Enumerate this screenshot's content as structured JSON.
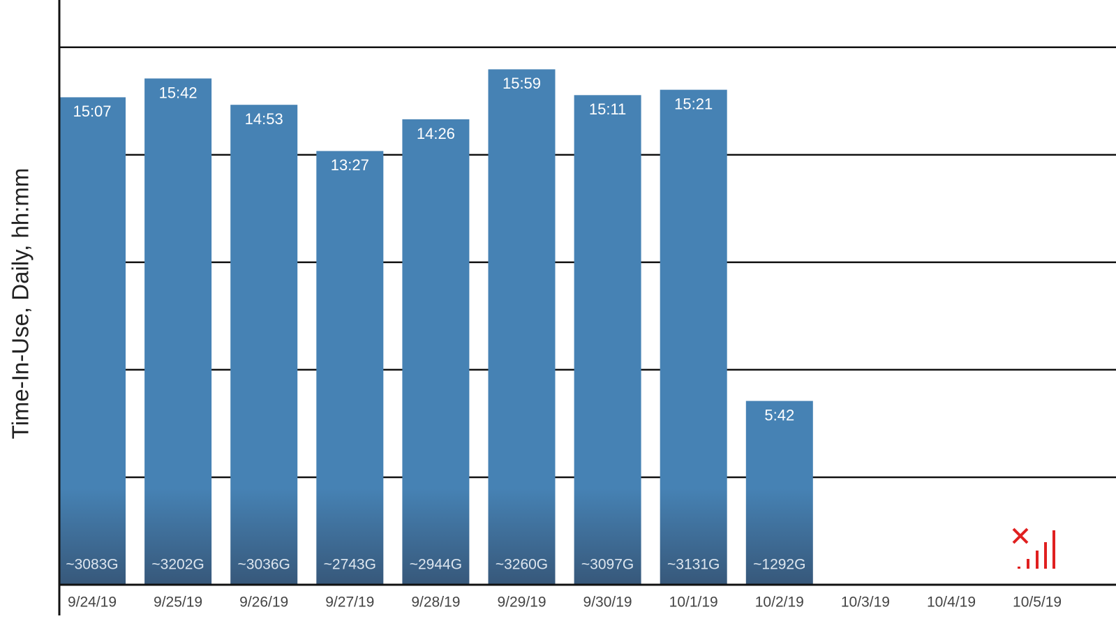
{
  "chart_data": {
    "type": "bar",
    "y_label": "Time-In-Use, Daily, hh:mm",
    "categories": [
      "9/24/19",
      "9/25/19",
      "9/26/19",
      "9/27/19",
      "9/28/19",
      "9/29/19",
      "9/30/19",
      "10/1/19",
      "10/2/19",
      "10/3/19",
      "10/4/19",
      "10/5/19"
    ],
    "values": [
      907,
      942,
      893,
      807,
      866,
      959,
      911,
      921,
      342,
      null,
      null,
      null
    ],
    "value_labels": [
      "15:07",
      "15:42",
      "14:53",
      "13:27",
      "14:26",
      "15:59",
      "15:11",
      "15:21",
      "5:42",
      null,
      null,
      null
    ],
    "bar_notes": [
      "~3083G",
      "~3202G",
      "~3036G",
      "~2743G",
      "~2944G",
      "~3260G",
      "~3097G",
      "~3131G",
      "~1292G",
      null,
      null,
      null
    ],
    "color": "#4682b4",
    "ylim": [
      0,
      1088
    ],
    "yticks": [
      200,
      400,
      600,
      800,
      1000
    ],
    "grid": true
  }
}
